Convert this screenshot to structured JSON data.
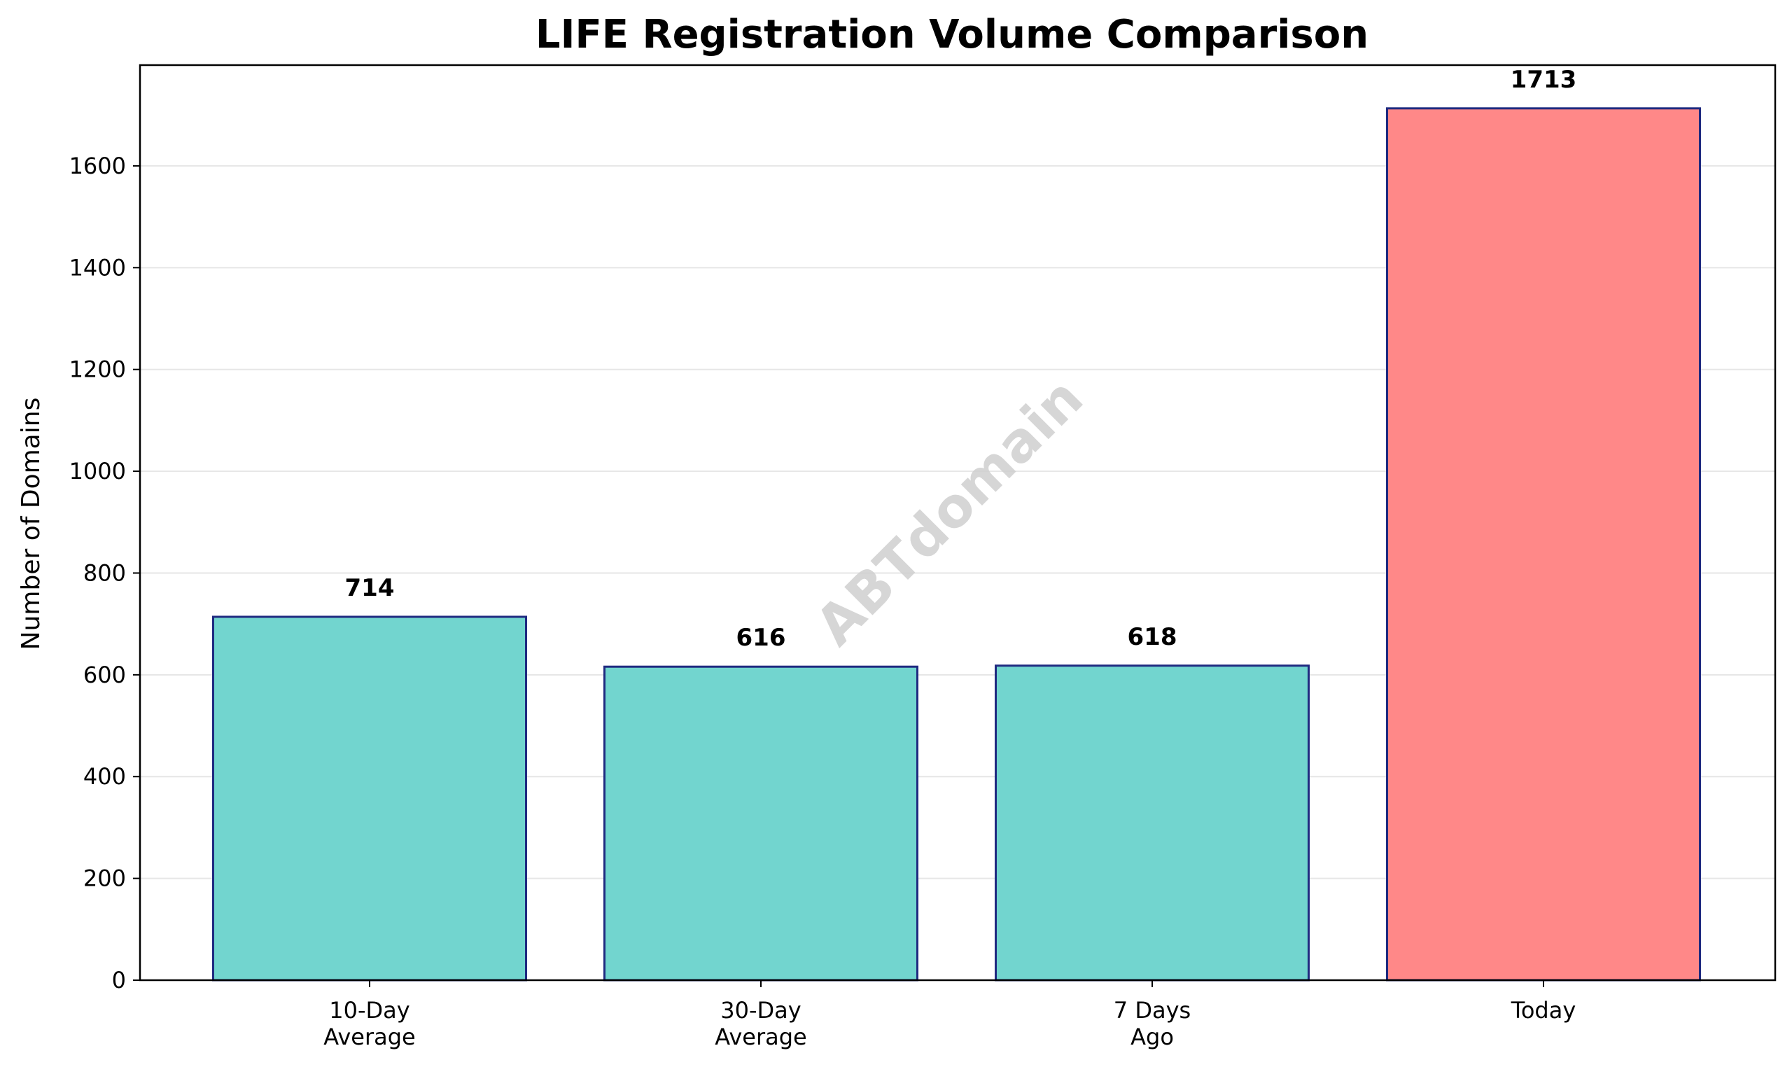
{
  "chart_data": {
    "type": "bar",
    "title": "LIFE Registration Volume Comparison",
    "xlabel": "",
    "ylabel": "Number of Domains",
    "categories": [
      "10-Day\nAverage",
      "30-Day\nAverage",
      "7 Days\nAgo",
      "Today"
    ],
    "values": [
      714,
      616,
      618,
      1713
    ],
    "data_labels": [
      "714",
      "616",
      "618",
      "1713"
    ],
    "ylim": [
      0,
      1798
    ],
    "yticks": [
      0,
      200,
      400,
      600,
      800,
      1000,
      1200,
      1400,
      1600
    ],
    "grid": "horizontal",
    "bar_colors": [
      "#72d5cf",
      "#72d5cf",
      "#72d5cf",
      "#ff8888"
    ],
    "bar_edge_color": "#1f2a80",
    "grid_color": "#e6e6e6"
  },
  "watermark": "ABTdomain"
}
